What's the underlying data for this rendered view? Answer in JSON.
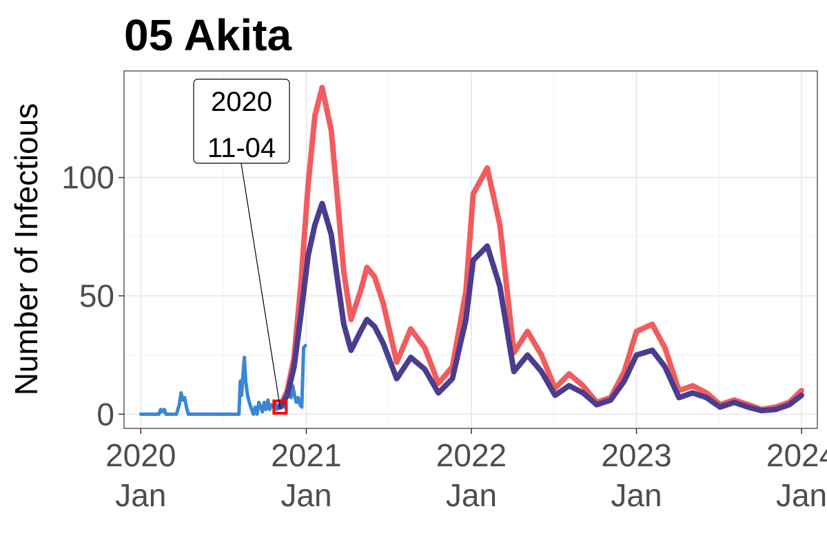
{
  "chart_data": {
    "type": "line",
    "title": "05 Akita",
    "xlabel": "",
    "ylabel": "Number of Infectious",
    "xlim": [
      "2019-11-25",
      "2024-02-05"
    ],
    "ylim": [
      -6,
      145
    ],
    "grid": true,
    "legend": "none",
    "x_ticks": [
      {
        "date": "2020-01-01",
        "year": "2020",
        "month": "Jan"
      },
      {
        "date": "2021-01-01",
        "year": "2021",
        "month": "Jan"
      },
      {
        "date": "2022-01-01",
        "year": "2022",
        "month": "Jan"
      },
      {
        "date": "2023-01-01",
        "year": "2023",
        "month": "Jan"
      },
      {
        "date": "2024-01-01",
        "year": "2024",
        "month": "Jan"
      }
    ],
    "y_ticks": [
      0,
      50,
      100
    ],
    "colors": {
      "observed": "#3a86d4",
      "upper": "#f25c5c",
      "central": "#4a3d8f",
      "marker": "#ff0000"
    },
    "annotation": {
      "date": "2020-11-04",
      "value": 3,
      "line1": "2020",
      "line2": "11-04"
    },
    "series": [
      {
        "color": "#3a86d4",
        "points": [
          [
            "2020-01-01",
            0
          ],
          [
            "2020-02-10",
            0
          ],
          [
            "2020-02-14",
            2
          ],
          [
            "2020-02-18",
            1
          ],
          [
            "2020-02-22",
            2
          ],
          [
            "2020-02-26",
            0
          ],
          [
            "2020-03-20",
            0
          ],
          [
            "2020-03-26",
            4
          ],
          [
            "2020-03-30",
            9
          ],
          [
            "2020-04-03",
            6
          ],
          [
            "2020-04-07",
            7
          ],
          [
            "2020-04-11",
            3
          ],
          [
            "2020-04-15",
            0
          ],
          [
            "2020-08-05",
            0
          ],
          [
            "2020-08-08",
            14
          ],
          [
            "2020-08-11",
            8
          ],
          [
            "2020-08-14",
            17
          ],
          [
            "2020-08-17",
            24
          ],
          [
            "2020-08-20",
            14
          ],
          [
            "2020-08-24",
            8
          ],
          [
            "2020-08-28",
            5
          ],
          [
            "2020-09-02",
            2
          ],
          [
            "2020-09-06",
            0
          ],
          [
            "2020-09-10",
            3
          ],
          [
            "2020-09-14",
            0
          ],
          [
            "2020-09-18",
            5
          ],
          [
            "2020-09-22",
            3
          ],
          [
            "2020-09-26",
            1
          ],
          [
            "2020-09-30",
            5
          ],
          [
            "2020-10-04",
            2
          ],
          [
            "2020-10-08",
            6
          ],
          [
            "2020-10-12",
            2
          ],
          [
            "2020-10-16",
            4
          ],
          [
            "2020-10-20",
            3
          ],
          [
            "2020-10-24",
            5
          ],
          [
            "2020-10-28",
            2
          ],
          [
            "2020-11-01",
            4
          ],
          [
            "2020-11-04",
            3
          ],
          [
            "2020-11-08",
            5
          ],
          [
            "2020-11-12",
            3
          ],
          [
            "2020-11-16",
            6
          ],
          [
            "2020-11-20",
            10
          ],
          [
            "2020-11-24",
            13
          ],
          [
            "2020-11-28",
            7
          ],
          [
            "2020-12-02",
            12
          ],
          [
            "2020-12-06",
            8
          ],
          [
            "2020-12-10",
            5
          ],
          [
            "2020-12-14",
            7
          ],
          [
            "2020-12-18",
            4
          ],
          [
            "2020-12-22",
            3
          ],
          [
            "2020-12-26",
            28
          ],
          [
            "2020-12-30",
            29
          ]
        ]
      },
      {
        "color": "#f25c5c",
        "points": [
          [
            "2020-11-04",
            3
          ],
          [
            "2020-11-20",
            10
          ],
          [
            "2020-12-05",
            24
          ],
          [
            "2020-12-20",
            55
          ],
          [
            "2021-01-05",
            97
          ],
          [
            "2021-01-20",
            126
          ],
          [
            "2021-02-05",
            138
          ],
          [
            "2021-02-25",
            120
          ],
          [
            "2021-03-10",
            93
          ],
          [
            "2021-03-25",
            60
          ],
          [
            "2021-04-10",
            40
          ],
          [
            "2021-05-01",
            52
          ],
          [
            "2021-05-15",
            62
          ],
          [
            "2021-06-01",
            58
          ],
          [
            "2021-06-20",
            47
          ],
          [
            "2021-07-20",
            22
          ],
          [
            "2021-08-20",
            36
          ],
          [
            "2021-09-20",
            28
          ],
          [
            "2021-10-20",
            13
          ],
          [
            "2021-11-20",
            20
          ],
          [
            "2021-12-20",
            52
          ],
          [
            "2022-01-05",
            93
          ],
          [
            "2022-02-05",
            104
          ],
          [
            "2022-03-05",
            80
          ],
          [
            "2022-04-05",
            26
          ],
          [
            "2022-05-05",
            35
          ],
          [
            "2022-06-05",
            25
          ],
          [
            "2022-07-05",
            11
          ],
          [
            "2022-08-05",
            17
          ],
          [
            "2022-09-05",
            12
          ],
          [
            "2022-10-05",
            5
          ],
          [
            "2022-11-05",
            7
          ],
          [
            "2022-12-05",
            18
          ],
          [
            "2023-01-01",
            35
          ],
          [
            "2023-02-05",
            38
          ],
          [
            "2023-03-05",
            28
          ],
          [
            "2023-04-05",
            10
          ],
          [
            "2023-05-05",
            12
          ],
          [
            "2023-06-05",
            9
          ],
          [
            "2023-07-05",
            4
          ],
          [
            "2023-08-05",
            6
          ],
          [
            "2023-09-05",
            4
          ],
          [
            "2023-10-05",
            2
          ],
          [
            "2023-11-05",
            3
          ],
          [
            "2023-12-05",
            5
          ],
          [
            "2024-01-01",
            10
          ]
        ]
      },
      {
        "color": "#4a3d8f",
        "points": [
          [
            "2020-11-04",
            3
          ],
          [
            "2020-11-20",
            8
          ],
          [
            "2020-12-05",
            20
          ],
          [
            "2020-12-20",
            42
          ],
          [
            "2021-01-05",
            67
          ],
          [
            "2021-01-20",
            80
          ],
          [
            "2021-02-05",
            89
          ],
          [
            "2021-02-25",
            76
          ],
          [
            "2021-03-10",
            58
          ],
          [
            "2021-03-25",
            38
          ],
          [
            "2021-04-10",
            27
          ],
          [
            "2021-05-01",
            35
          ],
          [
            "2021-05-15",
            40
          ],
          [
            "2021-06-01",
            37
          ],
          [
            "2021-06-20",
            30
          ],
          [
            "2021-07-20",
            15
          ],
          [
            "2021-08-20",
            24
          ],
          [
            "2021-09-20",
            19
          ],
          [
            "2021-10-20",
            9
          ],
          [
            "2021-11-20",
            15
          ],
          [
            "2021-12-20",
            40
          ],
          [
            "2022-01-05",
            65
          ],
          [
            "2022-02-05",
            71
          ],
          [
            "2022-03-05",
            54
          ],
          [
            "2022-04-05",
            18
          ],
          [
            "2022-05-05",
            25
          ],
          [
            "2022-06-05",
            18
          ],
          [
            "2022-07-05",
            8
          ],
          [
            "2022-08-05",
            12
          ],
          [
            "2022-09-05",
            9
          ],
          [
            "2022-10-05",
            4
          ],
          [
            "2022-11-05",
            6
          ],
          [
            "2022-12-05",
            14
          ],
          [
            "2023-01-01",
            25
          ],
          [
            "2023-02-05",
            27
          ],
          [
            "2023-03-05",
            20
          ],
          [
            "2023-04-05",
            7
          ],
          [
            "2023-05-05",
            9
          ],
          [
            "2023-06-05",
            7
          ],
          [
            "2023-07-05",
            3
          ],
          [
            "2023-08-05",
            5
          ],
          [
            "2023-09-05",
            3
          ],
          [
            "2023-10-05",
            1.5
          ],
          [
            "2023-11-05",
            2
          ],
          [
            "2023-12-05",
            4
          ],
          [
            "2024-01-01",
            8
          ]
        ]
      }
    ]
  }
}
